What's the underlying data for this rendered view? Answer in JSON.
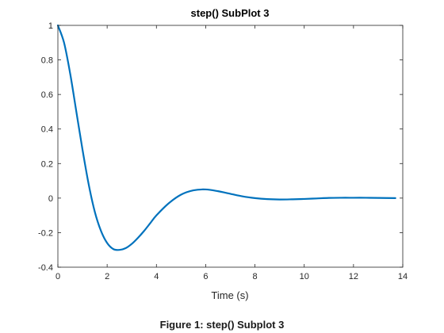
{
  "caption": "Figure 1: step() Subplot 3",
  "chart_data": {
    "type": "line",
    "title": "step() SubPlot 3",
    "xlabel": "Time (s)",
    "ylabel": "",
    "xlim": [
      0,
      14
    ],
    "ylim": [
      -0.4,
      1
    ],
    "xticks": [
      "0",
      "2",
      "4",
      "6",
      "8",
      "10",
      "12",
      "14"
    ],
    "yticks": [
      "-0.4",
      "-0.2",
      "0",
      "0.2",
      "0.4",
      "0.6",
      "0.8",
      "1"
    ],
    "grid": false,
    "series": [
      {
        "color": "#0072bd",
        "x": [
          0,
          0.25,
          0.5,
          0.75,
          1.0,
          1.25,
          1.5,
          1.75,
          2.0,
          2.25,
          2.5,
          2.75,
          3.0,
          3.25,
          3.5,
          3.75,
          4.0,
          4.5,
          5.0,
          5.5,
          6.0,
          6.5,
          7.0,
          7.5,
          8.0,
          8.5,
          9.0,
          9.5,
          10.0,
          10.5,
          11.0,
          11.5,
          12.0,
          12.5,
          13.0,
          13.7
        ],
        "y": [
          1.0,
          0.9,
          0.72,
          0.5,
          0.28,
          0.08,
          -0.08,
          -0.19,
          -0.26,
          -0.295,
          -0.3,
          -0.29,
          -0.265,
          -0.23,
          -0.19,
          -0.145,
          -0.1,
          -0.03,
          0.02,
          0.045,
          0.05,
          0.04,
          0.025,
          0.01,
          0.0,
          -0.006,
          -0.008,
          -0.007,
          -0.005,
          -0.002,
          0.001,
          0.002,
          0.002,
          0.002,
          0.001,
          0.0
        ]
      }
    ]
  }
}
